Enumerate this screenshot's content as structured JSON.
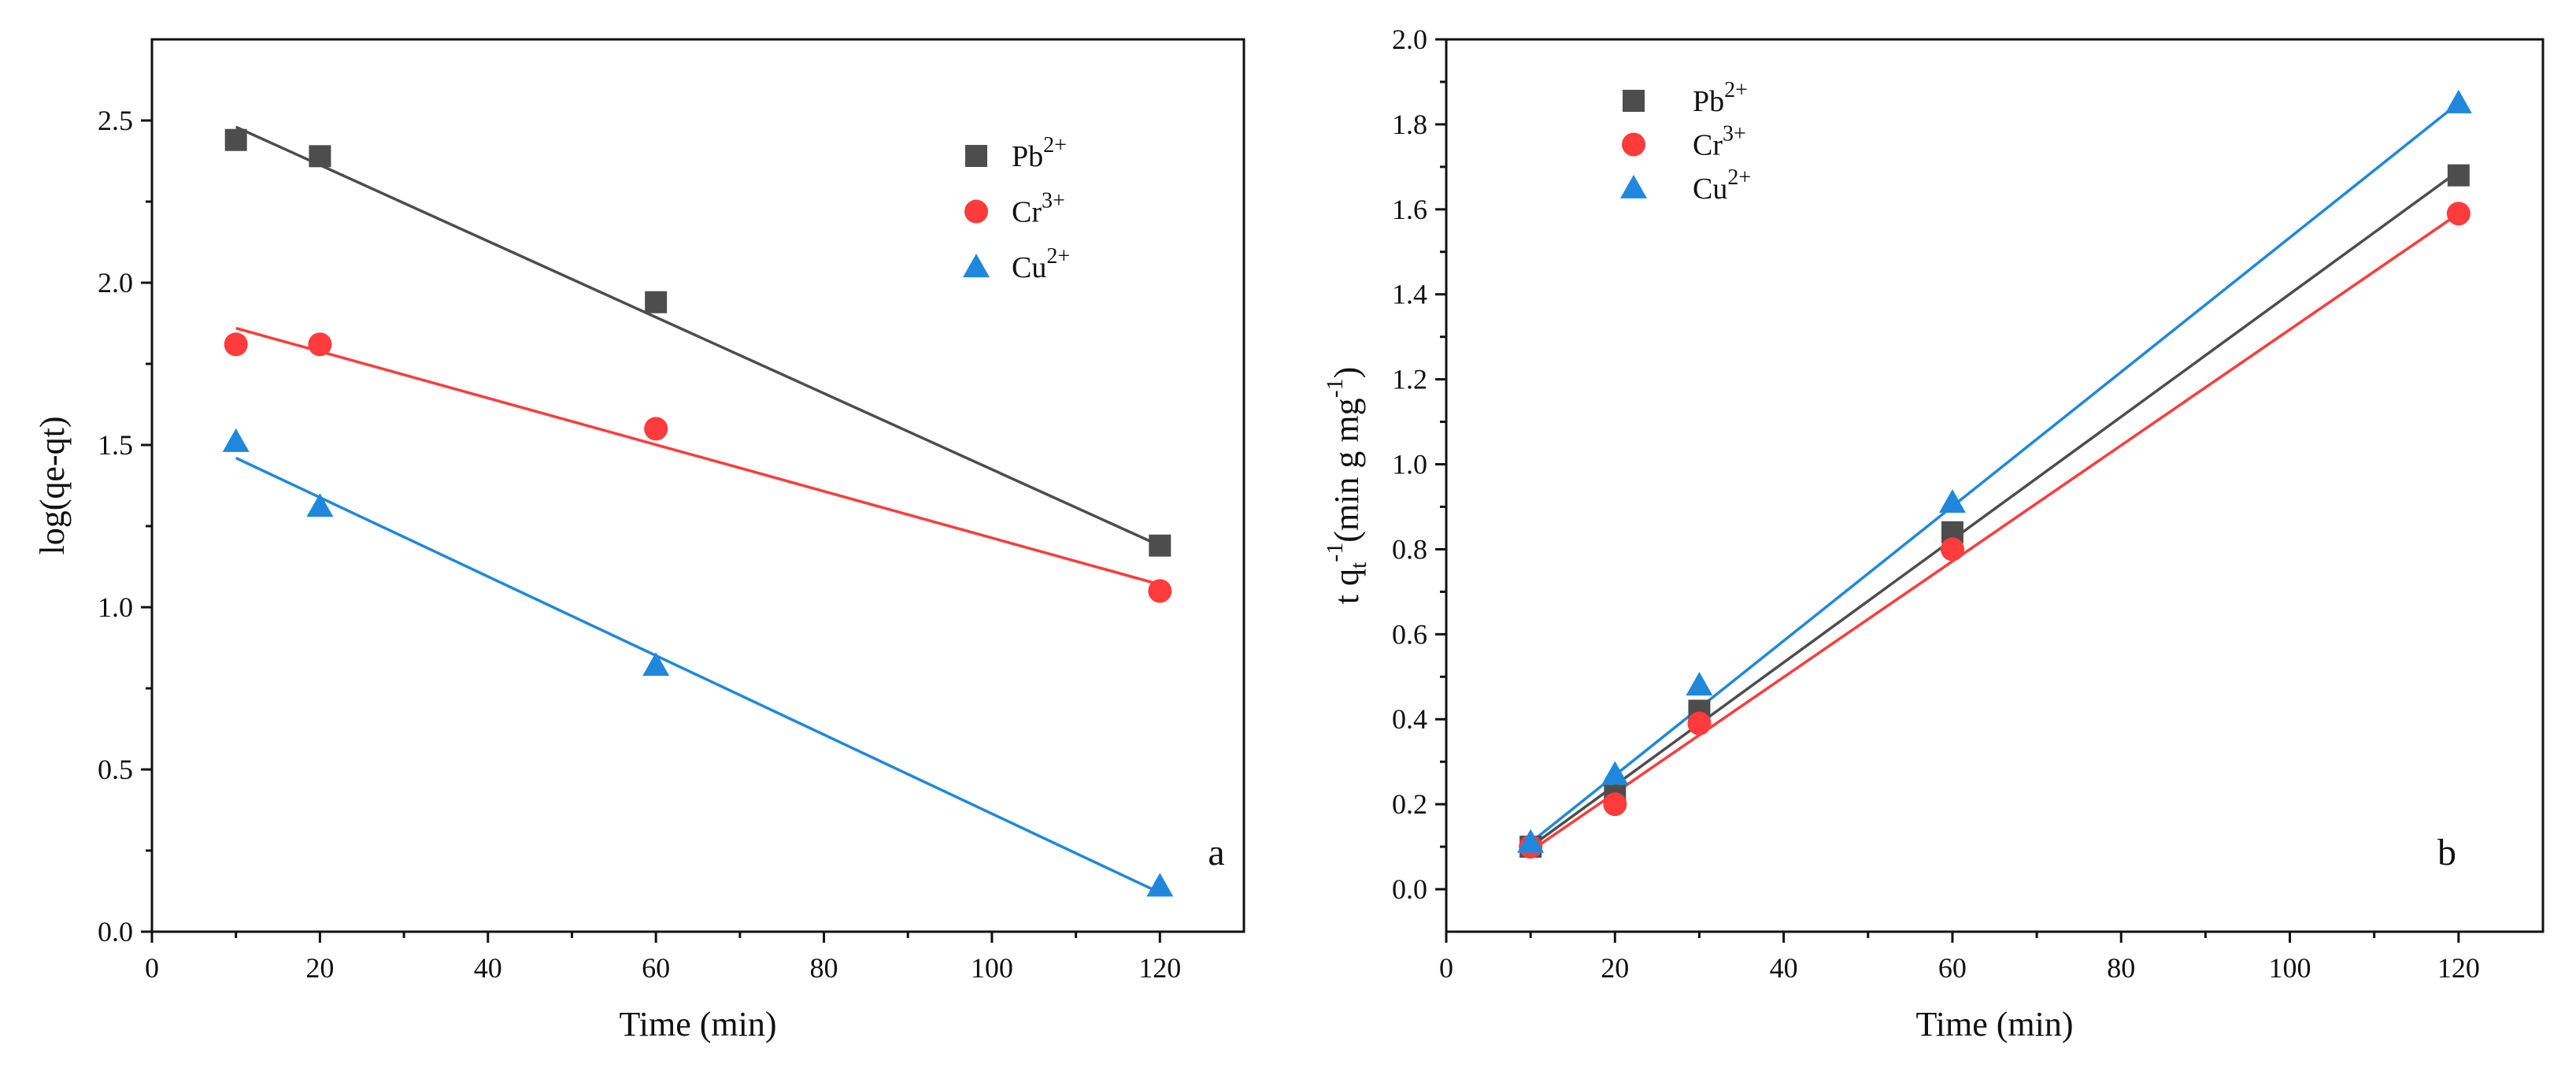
{
  "colors": {
    "pb": "#4d4d4d",
    "cr": "#ff3b3b",
    "cu": "#1f88dd",
    "axis": "#111111"
  },
  "chart_data": [
    {
      "type": "scatter",
      "panel": "a",
      "xlabel": "Time (min)",
      "ylabel": "log(qe-qt)",
      "xlim": [
        0,
        130
      ],
      "ylim": [
        0,
        2.75
      ],
      "xticks": [
        0,
        20,
        40,
        60,
        80,
        100,
        120
      ],
      "yticks": [
        0.0,
        0.5,
        1.0,
        1.5,
        2.0,
        2.5
      ],
      "ytick_labels": [
        "0.0",
        "0.5",
        "1.0",
        "1.5",
        "2.0",
        "2.5"
      ],
      "grid": false,
      "legend_position": "top-right",
      "series": [
        {
          "name": "Pb",
          "sup": "2+",
          "marker": "square",
          "color": "#4d4d4d",
          "x": [
            10,
            20,
            60,
            120
          ],
          "y": [
            2.44,
            2.39,
            1.94,
            1.19
          ],
          "fit": {
            "x": [
              10,
              120
            ],
            "y": [
              2.48,
              1.19
            ]
          }
        },
        {
          "name": "Cr",
          "sup": "3+",
          "marker": "circle",
          "color": "#ff3b3b",
          "x": [
            10,
            20,
            60,
            120
          ],
          "y": [
            1.81,
            1.81,
            1.55,
            1.05
          ],
          "fit": {
            "x": [
              10,
              120
            ],
            "y": [
              1.86,
              1.07
            ]
          }
        },
        {
          "name": "Cu",
          "sup": "2+",
          "marker": "triangle",
          "color": "#1f88dd",
          "x": [
            10,
            20,
            60,
            120
          ],
          "y": [
            1.51,
            1.31,
            0.82,
            0.14
          ],
          "fit": {
            "x": [
              10,
              120
            ],
            "y": [
              1.46,
              0.12
            ]
          }
        }
      ]
    },
    {
      "type": "scatter",
      "panel": "b",
      "xlabel": "Time (min)",
      "ylabel_main": "t q",
      "ylabel_sub": "t",
      "ylabel_sup1": "-1",
      "ylabel_unit": "(min g mg",
      "ylabel_sup2": "-1",
      "ylabel_close": ")",
      "xlim": [
        0,
        130
      ],
      "ylim": [
        -0.1,
        2.0
      ],
      "xticks": [
        0,
        20,
        40,
        60,
        80,
        100,
        120
      ],
      "yticks": [
        0.0,
        0.2,
        0.4,
        0.6,
        0.8,
        1.0,
        1.2,
        1.4,
        1.6,
        1.8,
        2.0
      ],
      "ytick_labels": [
        "0.0",
        "0.2",
        "0.4",
        "0.6",
        "0.8",
        "1.0",
        "1.2",
        "1.4",
        "1.6",
        "1.8",
        "2.0"
      ],
      "grid": false,
      "legend_position": "top-left",
      "series": [
        {
          "name": "Pb",
          "sup": "2+",
          "marker": "square",
          "color": "#4d4d4d",
          "x": [
            10,
            20,
            30,
            60,
            120
          ],
          "y": [
            0.1,
            0.22,
            0.42,
            0.84,
            1.68
          ],
          "fit": {
            "x": [
              10,
              120
            ],
            "y": [
              0.1,
              1.69
            ]
          }
        },
        {
          "name": "Cr",
          "sup": "3+",
          "marker": "circle",
          "color": "#ff3b3b",
          "x": [
            10,
            20,
            30,
            60,
            120
          ],
          "y": [
            0.1,
            0.2,
            0.39,
            0.8,
            1.59
          ],
          "fit": {
            "x": [
              10,
              120
            ],
            "y": [
              0.09,
              1.59
            ]
          }
        },
        {
          "name": "Cu",
          "sup": "2+",
          "marker": "triangle",
          "color": "#1f88dd",
          "x": [
            10,
            20,
            30,
            60,
            120
          ],
          "y": [
            0.11,
            0.27,
            0.48,
            0.91,
            1.85
          ],
          "fit": {
            "x": [
              10,
              120
            ],
            "y": [
              0.11,
              1.85
            ]
          }
        }
      ]
    }
  ]
}
